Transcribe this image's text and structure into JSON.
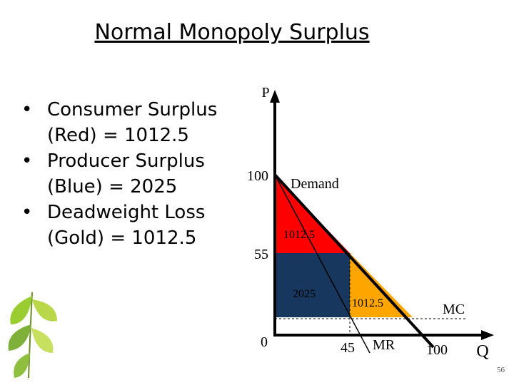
{
  "title": "Normal Monopoly Surplus",
  "bullets": [
    "Consumer Surplus (Red) = 1012.5",
    "Producer Surplus (Blue) = 2025",
    "Deadweight Loss (Gold) = 1012.5"
  ],
  "diagram": {
    "y_axis_label": "P",
    "x_axis_label": "Q",
    "y_labels": [
      "100",
      "55",
      "0"
    ],
    "x_labels": [
      "45",
      "100"
    ],
    "curve_labels": {
      "demand": "Demand",
      "mr": "MR",
      "mc": "MC"
    },
    "area_labels": {
      "consumer_surplus": "1012.5",
      "producer_surplus": "2025",
      "deadweight_loss": "1012.5"
    }
  },
  "page_number": "56"
}
